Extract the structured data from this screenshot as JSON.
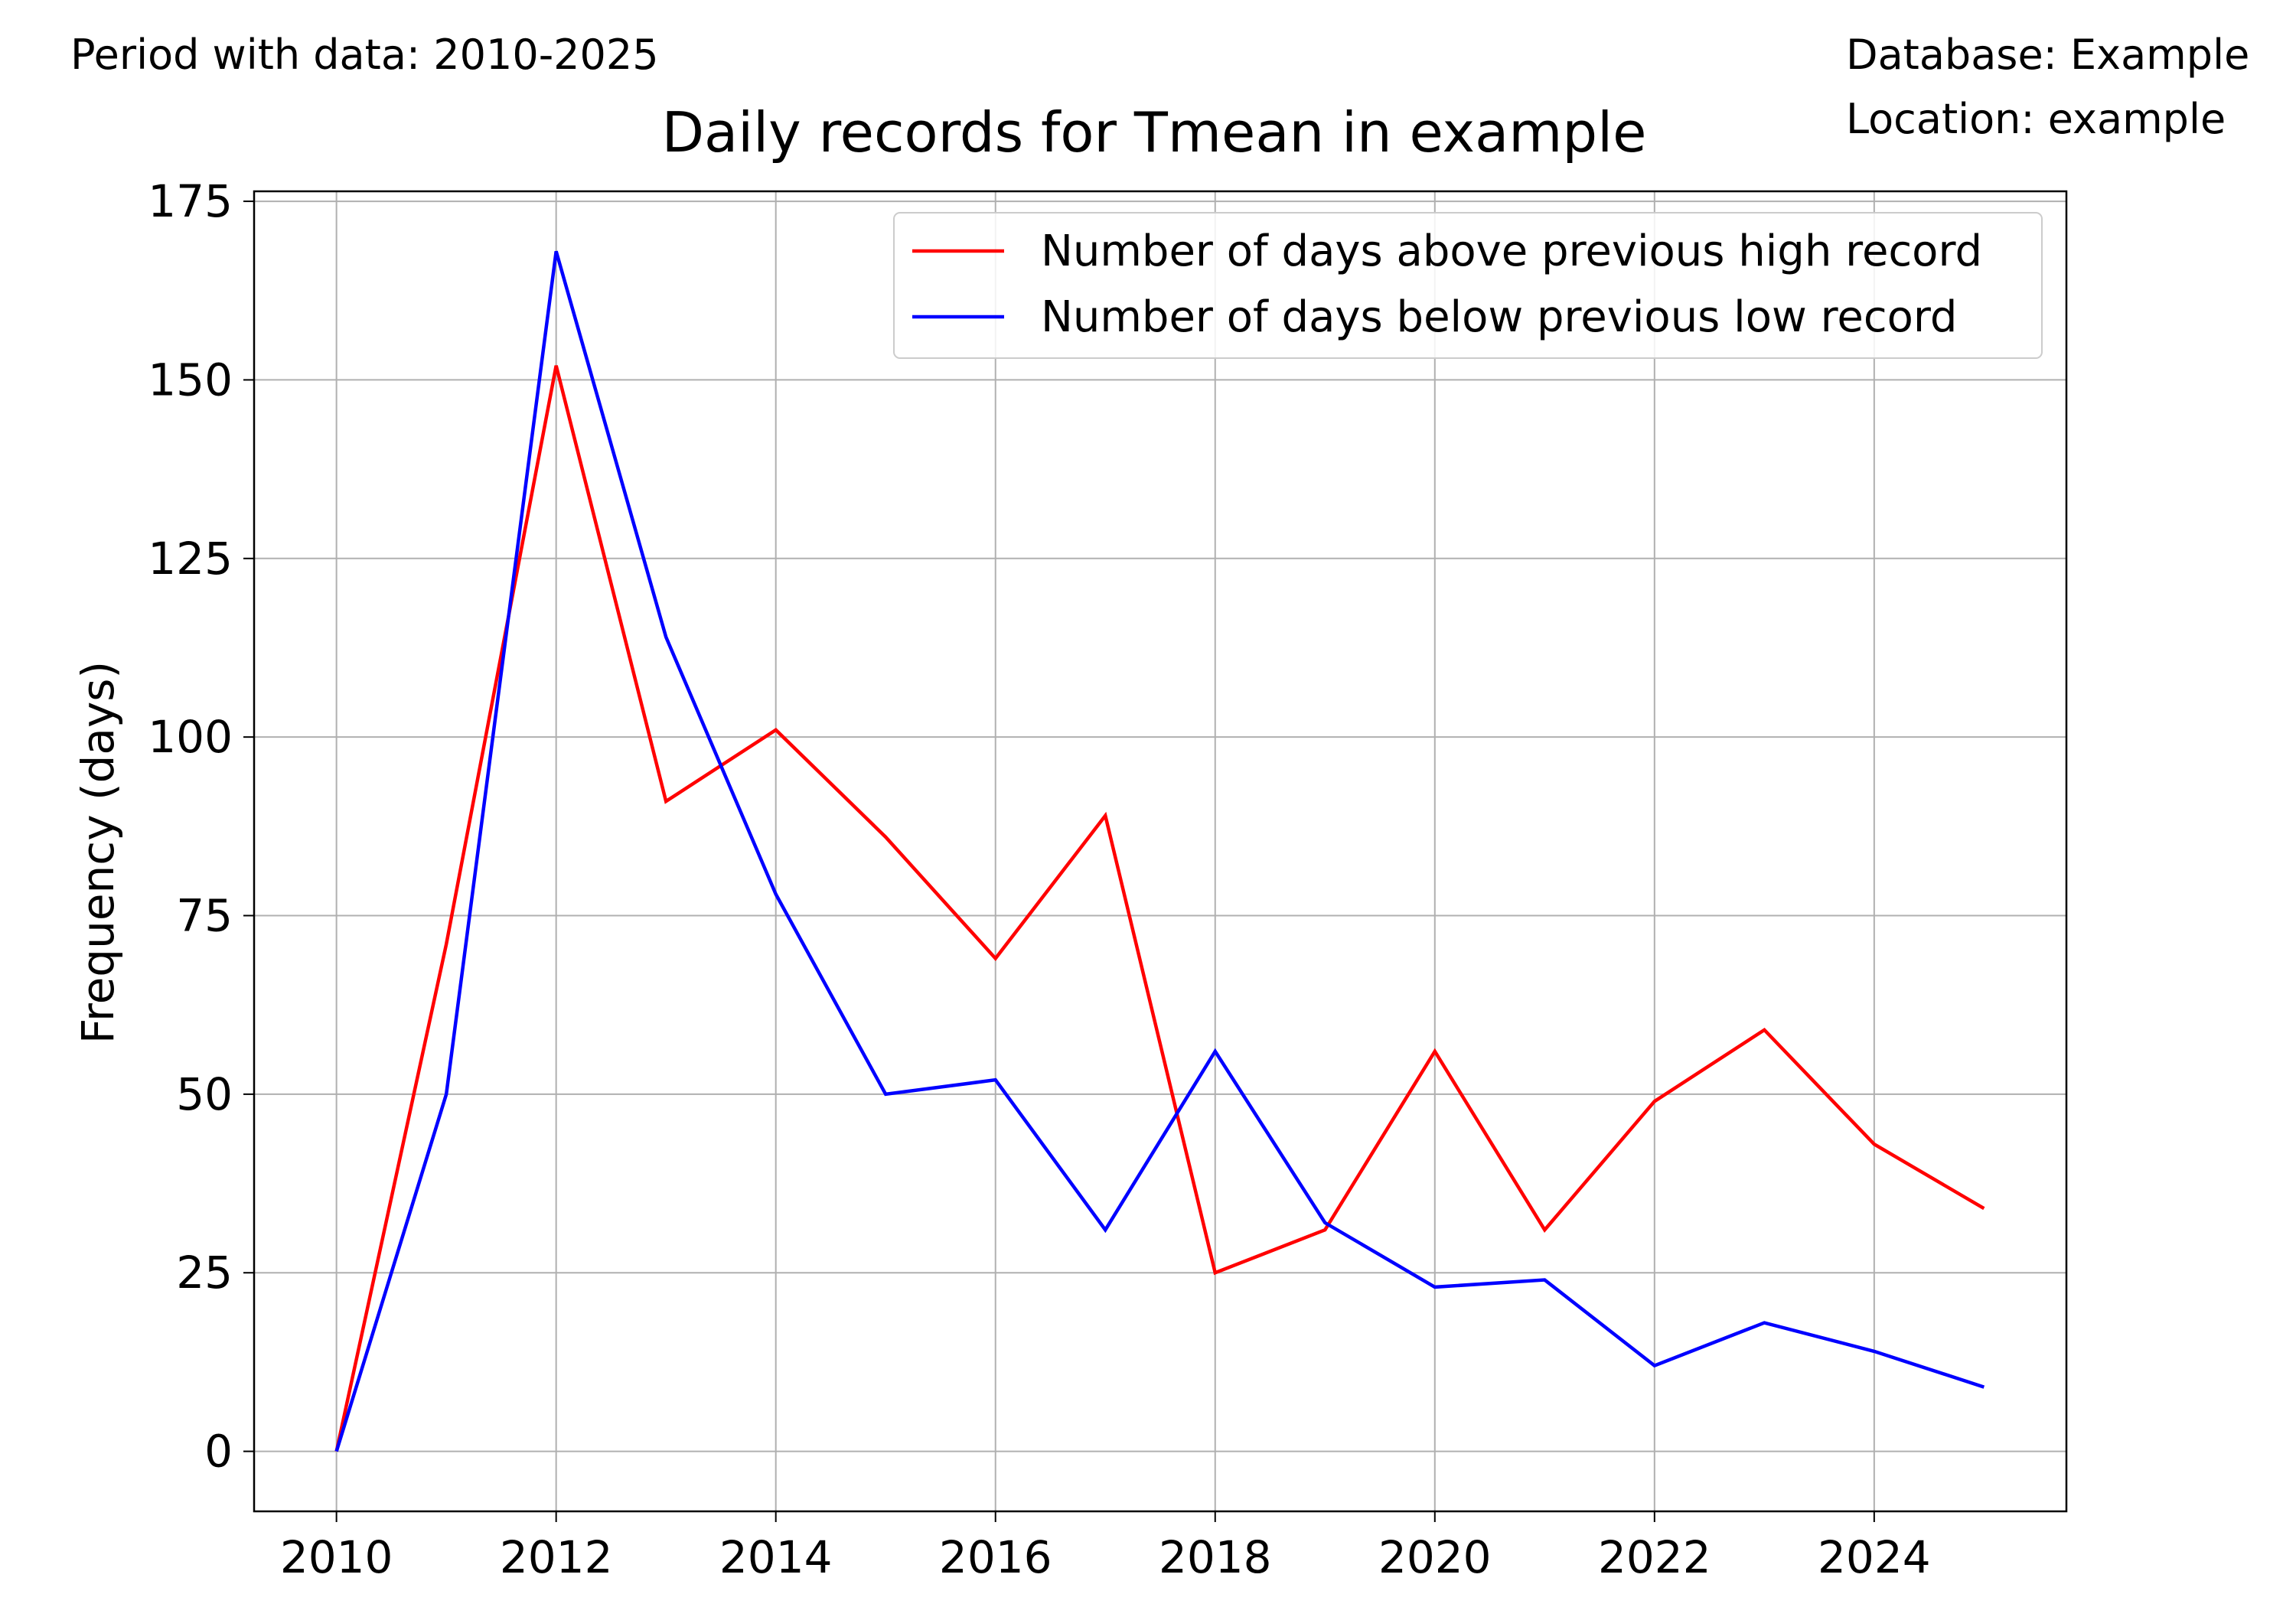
{
  "header": {
    "period": "Period with data: 2010-2025",
    "database": "Database: Example",
    "location": "Location: example"
  },
  "chart_data": {
    "type": "line",
    "title": "Daily records for Tmean in example",
    "xlabel": "",
    "ylabel": "Frequency (days)",
    "x": [
      2010,
      2011,
      2012,
      2013,
      2014,
      2015,
      2016,
      2017,
      2018,
      2019,
      2020,
      2021,
      2022,
      2023,
      2024,
      2025
    ],
    "xlim": [
      2009.25,
      2025.75
    ],
    "ylim": [
      -8.4,
      176.4
    ],
    "xticks": [
      "2010",
      "2012",
      "2014",
      "2016",
      "2018",
      "2020",
      "2022",
      "2024"
    ],
    "yticks": [
      "0",
      "25",
      "50",
      "75",
      "100",
      "125",
      "150",
      "175"
    ],
    "grid": true,
    "legend_position": "top-right",
    "series": [
      {
        "name": "Number of days above previous high record",
        "color": "#ff0000",
        "values": [
          0,
          71,
          152,
          91,
          101,
          86,
          69,
          89,
          25,
          31,
          56,
          31,
          49,
          59,
          43,
          34
        ]
      },
      {
        "name": "Number of days below previous low record",
        "color": "#0000ff",
        "values": [
          0,
          50,
          168,
          114,
          78,
          50,
          52,
          31,
          56,
          32,
          23,
          24,
          12,
          18,
          14,
          9
        ]
      }
    ]
  }
}
